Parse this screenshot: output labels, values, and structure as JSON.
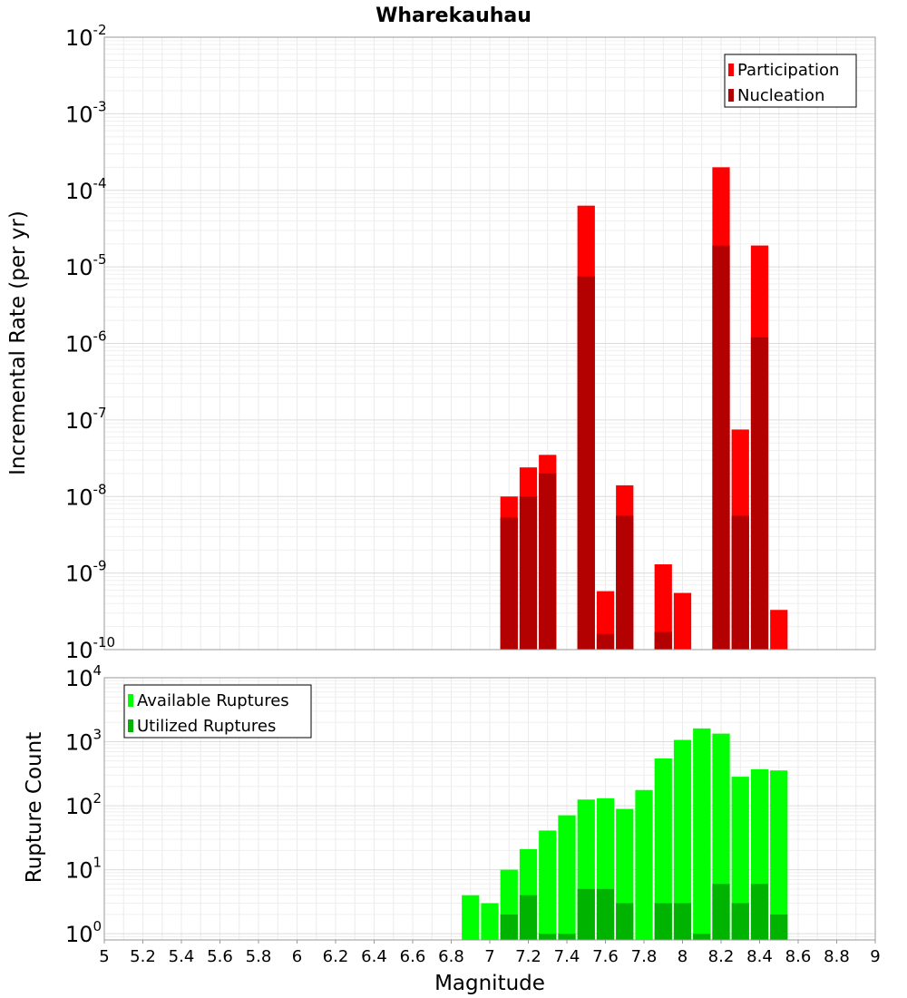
{
  "chart_data": [
    {
      "type": "bar",
      "title": "Wharekauhau",
      "xlabel": "",
      "ylabel": "Incremental Rate (per yr)",
      "yscale": "log",
      "ylim": [
        1e-10,
        0.01
      ],
      "xlim": [
        5,
        9
      ],
      "grid": true,
      "legend_position": "top-right",
      "x": [
        7.1,
        7.2,
        7.3,
        7.5,
        7.6,
        7.7,
        7.9,
        8.0,
        8.2,
        8.3,
        8.4,
        8.5
      ],
      "series": [
        {
          "name": "Participation",
          "color": "#ff0000",
          "values": [
            1e-08,
            2.4e-08,
            3.5e-08,
            6.3e-05,
            5.8e-10,
            1.4e-08,
            1.3e-09,
            5.5e-10,
            0.0002,
            7.5e-08,
            1.9e-05,
            3.3e-10
          ]
        },
        {
          "name": "Nucleation",
          "color": "#b30000",
          "values": [
            5.3e-09,
            1e-08,
            2e-08,
            7.5e-06,
            1.6e-10,
            5.6e-09,
            1.7e-10,
            null,
            1.9e-05,
            5.6e-09,
            1.2e-06,
            null
          ]
        }
      ]
    },
    {
      "type": "bar",
      "title": "",
      "xlabel": "Magnitude",
      "ylabel": "Rupture Count",
      "yscale": "log",
      "ylim": [
        0.8,
        10000
      ],
      "xlim": [
        5,
        9
      ],
      "grid": true,
      "legend_position": "top-left",
      "x": [
        6.9,
        7.0,
        7.1,
        7.2,
        7.3,
        7.4,
        7.5,
        7.6,
        7.7,
        7.8,
        7.9,
        8.0,
        8.1,
        8.2,
        8.3,
        8.4,
        8.5
      ],
      "series": [
        {
          "name": "Available Ruptures",
          "color": "#00ff00",
          "values": [
            4,
            3,
            10,
            21,
            41,
            71,
            125,
            131,
            89,
            176,
            548,
            1068,
            1614,
            1339,
            284,
            372,
            356
          ]
        },
        {
          "name": "Utilized Ruptures",
          "color": "#00b300",
          "values": [
            null,
            null,
            2,
            4,
            1,
            1,
            5,
            5,
            3,
            null,
            3,
            3,
            1,
            6,
            3,
            6,
            2
          ]
        }
      ]
    }
  ],
  "x_ticks": [
    "5",
    "5.2",
    "5.4",
    "5.6",
    "5.8",
    "6",
    "6.2",
    "6.4",
    "6.6",
    "6.8",
    "7",
    "7.2",
    "7.4",
    "7.6",
    "7.8",
    "8",
    "8.2",
    "8.4",
    "8.6",
    "8.8",
    "9"
  ],
  "top_y_ticks": [
    {
      "base": "10",
      "exp": "-2"
    },
    {
      "base": "10",
      "exp": "-3"
    },
    {
      "base": "10",
      "exp": "-4"
    },
    {
      "base": "10",
      "exp": "-5"
    },
    {
      "base": "10",
      "exp": "-6"
    },
    {
      "base": "10",
      "exp": "-7"
    },
    {
      "base": "10",
      "exp": "-8"
    },
    {
      "base": "10",
      "exp": "-9"
    },
    {
      "base": "10",
      "exp": "-10"
    }
  ],
  "bottom_y_ticks": [
    {
      "base": "10",
      "exp": "4"
    },
    {
      "base": "10",
      "exp": "3"
    },
    {
      "base": "10",
      "exp": "2"
    },
    {
      "base": "10",
      "exp": "1"
    },
    {
      "base": "10",
      "exp": "0"
    }
  ],
  "shared_xlabel": "Magnitude"
}
